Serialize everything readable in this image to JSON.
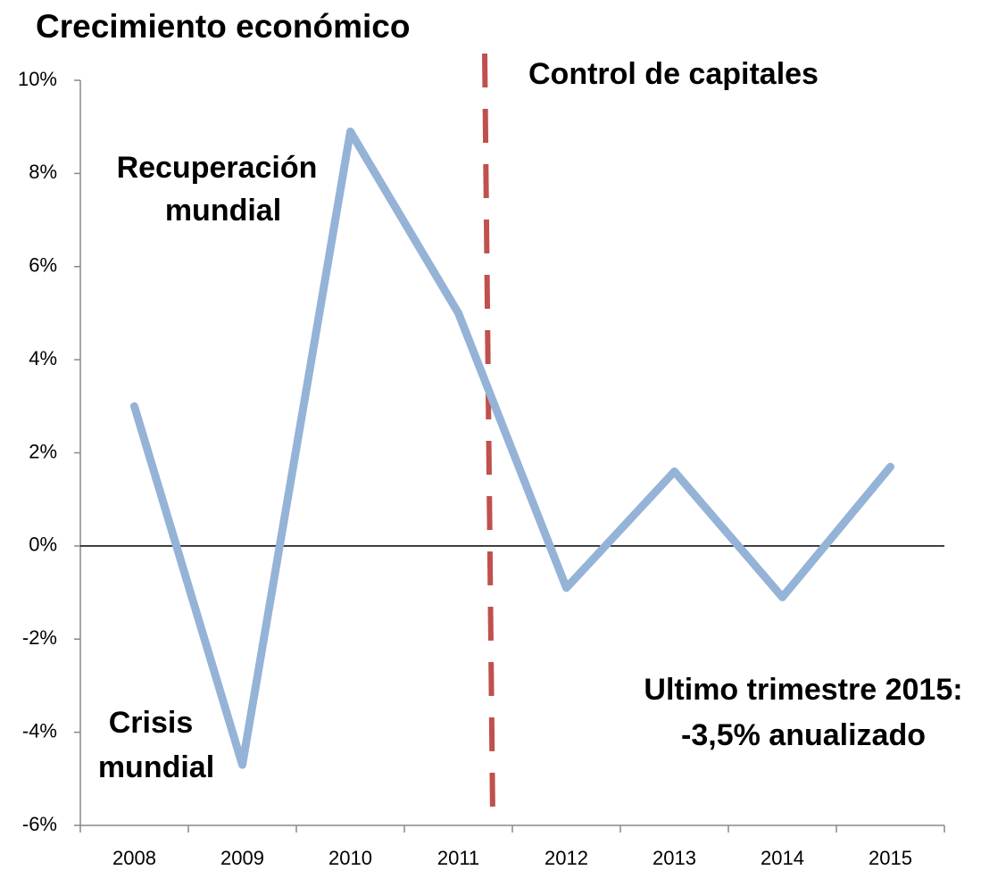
{
  "chart_data": {
    "type": "line",
    "title": "Crecimiento económico",
    "categories": [
      "2008",
      "2009",
      "2010",
      "2011",
      "2012",
      "2013",
      "2014",
      "2015"
    ],
    "series": [
      {
        "name": "Crecimiento",
        "color": "#95b3d7",
        "values": [
          3.0,
          -4.7,
          8.9,
          5.0,
          -0.9,
          1.6,
          -1.1,
          1.7
        ]
      }
    ],
    "ylim": [
      -6,
      10
    ],
    "yticks": [
      {
        "value": -6,
        "label": "-6%"
      },
      {
        "value": -4,
        "label": "-4%"
      },
      {
        "value": -2,
        "label": "-2%"
      },
      {
        "value": 0,
        "label": "0%"
      },
      {
        "value": 2,
        "label": "2%"
      },
      {
        "value": 4,
        "label": "4%"
      },
      {
        "value": 6,
        "label": "6%"
      },
      {
        "value": 8,
        "label": "8%"
      },
      {
        "value": 10,
        "label": "10%"
      }
    ],
    "grid": false,
    "annotations": [
      [
        "Control de capitales"
      ],
      [
        "Recuperación",
        "mundial"
      ],
      [
        "Crisis",
        "mundial"
      ],
      [
        "Ultimo trimestre 2015:",
        "-3,5% anualizado"
      ]
    ]
  }
}
